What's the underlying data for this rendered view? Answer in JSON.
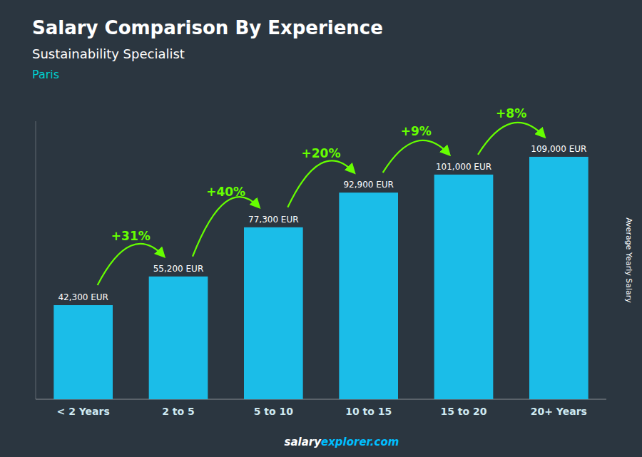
{
  "chart_data": {
    "type": "bar",
    "title": "Salary Comparison By Experience",
    "subtitle": "Sustainability Specialist",
    "ylabel": "Average Yearly Salary",
    "categories": [
      "< 2 Years",
      "2 to 5",
      "5 to 10",
      "10 to 15",
      "15 to 20",
      "20+ Years"
    ],
    "values": [
      42300,
      55200,
      77300,
      92900,
      101000,
      109000
    ],
    "value_labels": [
      "42,300 EUR",
      "55,200 EUR",
      "77,300 EUR",
      "92,900 EUR",
      "101,000 EUR",
      "109,000 EUR"
    ],
    "data_labels": true,
    "color": "#1BBDE8",
    "ylim": [
      0,
      125000
    ],
    "tick_labels": "x",
    "grid": false,
    "changes": {
      "values": [
        31,
        40,
        20,
        9,
        8
      ],
      "value_labels": [
        "+31%",
        "+40%",
        "+20%",
        "+9%",
        "+8%"
      ],
      "color": "#66FF00"
    },
    "annotations": [
      {
        "text": "Paris",
        "color": "#00CFCF"
      },
      {
        "text": "salary",
        "color": "#FFFFFF"
      },
      {
        "text": "explorer.com",
        "color": "#00BFFF"
      }
    ]
  }
}
